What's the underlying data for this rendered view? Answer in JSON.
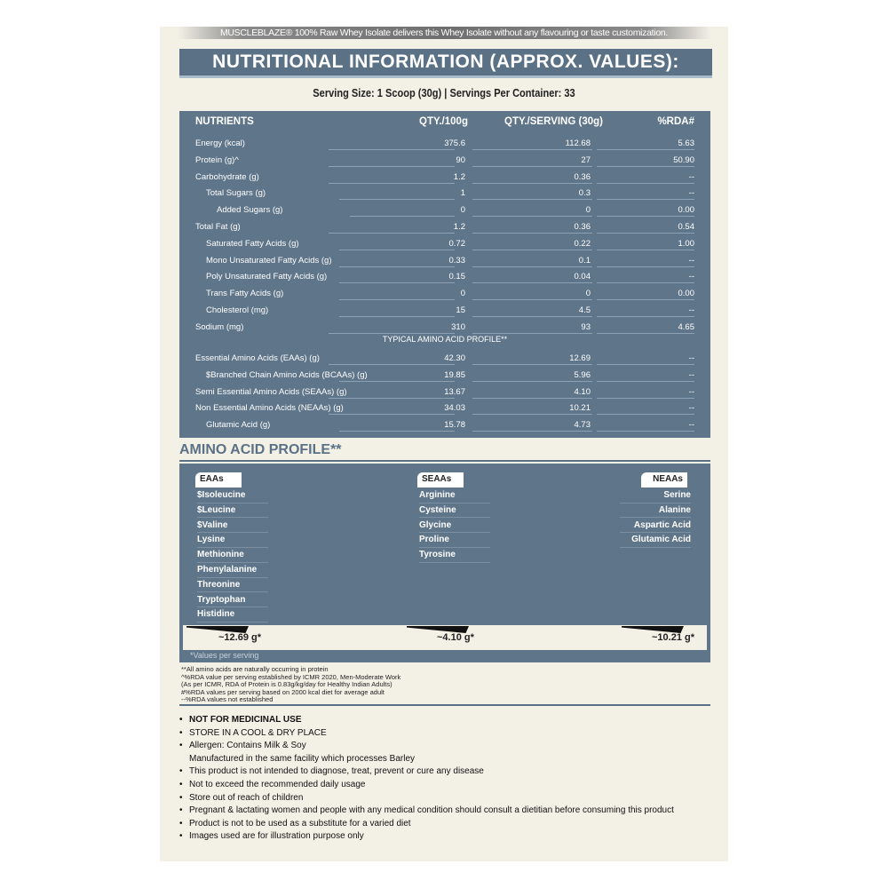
{
  "banner": "MUSCLEBLAZE® 100% Raw Whey Isolate delivers this Whey Isolate without any flavouring or taste customization.",
  "title": "NUTRITIONAL INFORMATION (APPROX. VALUES):",
  "serving": "Serving Size: 1 Scoop (30g)  |  Servings Per Container: 33",
  "table": {
    "headers": [
      "NUTRIENTS",
      "QTY./100g",
      "QTY./SERVING (30g)",
      "%RDA#"
    ],
    "rows": [
      {
        "name": "Energy (kcal)",
        "indent": 0,
        "per100": "375.6",
        "serving": "112.68",
        "rda": "5.63"
      },
      {
        "name": "Protein (g)^",
        "indent": 0,
        "per100": "90",
        "serving": "27",
        "rda": "50.90"
      },
      {
        "name": "Carbohydrate (g)",
        "indent": 0,
        "per100": "1.2",
        "serving": "0.36",
        "rda": "--"
      },
      {
        "name": "Total Sugars (g)",
        "indent": 1,
        "per100": "1",
        "serving": "0.3",
        "rda": "--"
      },
      {
        "name": "Added Sugars (g)",
        "indent": 2,
        "per100": "0",
        "serving": "0",
        "rda": "0.00"
      },
      {
        "name": "Total Fat (g)",
        "indent": 0,
        "per100": "1.2",
        "serving": "0.36",
        "rda": "0.54"
      },
      {
        "name": "Saturated Fatty Acids (g)",
        "indent": 1,
        "per100": "0.72",
        "serving": "0.22",
        "rda": "1.00"
      },
      {
        "name": "Mono Unsaturated Fatty Acids (g)",
        "indent": 1,
        "per100": "0.33",
        "serving": "0.1",
        "rda": "--"
      },
      {
        "name": "Poly Unsaturated Fatty Acids (g)",
        "indent": 1,
        "per100": "0.15",
        "serving": "0.04",
        "rda": "--"
      },
      {
        "name": "Trans Fatty Acids (g)",
        "indent": 1,
        "per100": "0",
        "serving": "0",
        "rda": "0.00"
      },
      {
        "name": "Cholesterol (mg)",
        "indent": 1,
        "per100": "15",
        "serving": "4.5",
        "rda": "--"
      },
      {
        "name": "Sodium (mg)",
        "indent": 0,
        "per100": "310",
        "serving": "93",
        "rda": "4.65"
      }
    ],
    "amino_heading": "TYPICAL AMINO ACID PROFILE**",
    "amino_rows": [
      {
        "name": "Essential Amino Acids (EAAs) (g)",
        "indent": 0,
        "per100": "42.30",
        "serving": "12.69",
        "rda": "--"
      },
      {
        "name": "$Branched Chain Amino Acids (BCAAs) (g)",
        "indent": 1,
        "per100": "19.85",
        "serving": "5.96",
        "rda": "--"
      },
      {
        "name": "Semi Essential Amino Acids (SEAAs) (g)",
        "indent": 0,
        "per100": "13.67",
        "serving": "4.10",
        "rda": "--"
      },
      {
        "name": "Non Essential Amino Acids (NEAAs) (g)",
        "indent": 0,
        "per100": "34.03",
        "serving": "10.21",
        "rda": "--"
      },
      {
        "name": "Glutamic Acid (g)",
        "indent": 1,
        "per100": "15.78",
        "serving": "4.73",
        "rda": "--"
      }
    ]
  },
  "amino_profile": {
    "title": "AMINO ACID PROFILE**",
    "groups": [
      {
        "label": "EAAs",
        "items": [
          "$Isoleucine",
          "$Leucine",
          "$Valine",
          "Lysine",
          "Methionine",
          "Phenylalanine",
          "Threonine",
          "Tryptophan",
          "Histidine"
        ],
        "total": "~12.69 g*"
      },
      {
        "label": "SEAAs",
        "items": [
          "Arginine",
          "Cysteine",
          "Glycine",
          "Proline",
          "Tyrosine"
        ],
        "total": "~4.10 g*"
      },
      {
        "label": "NEAAs",
        "items": [
          "Serine",
          "Alanine",
          "Aspartic Acid",
          "Glutamic Acid"
        ],
        "total": "~10.21 g*"
      }
    ],
    "note": "*Values per serving"
  },
  "footnotes": [
    "**All amino acids are naturally occurring in protein",
    "^%RDA value per serving established by ICMR 2020, Men-Moderate Work",
    "(As per ICMR, RDA of Protein is 0.83g/kg/day for Healthy Indian Adults)",
    "#%RDA values per serving based on 2000 kcal diet for average adult",
    "--%RDA values not established"
  ],
  "bullets": [
    {
      "text": "NOT FOR MEDICINAL USE",
      "bold": true,
      "bullet": true
    },
    {
      "text": "STORE IN A COOL & DRY PLACE",
      "bullet": true
    },
    {
      "text": "Allergen: Contains Milk & Soy",
      "bullet": true
    },
    {
      "text": "Manufactured in the same facility which processes Barley",
      "bullet": false
    },
    {
      "text": "This product is not intended to diagnose, treat, prevent or cure any disease",
      "bullet": true
    },
    {
      "text": "Not to exceed the recommended daily usage",
      "bullet": true
    },
    {
      "text": "Store out of reach of children",
      "bullet": true
    },
    {
      "text": "Pregnant & lactating women and people with any medical condition should consult a dietitian before consuming this product",
      "bullet": true
    },
    {
      "text": "Product is not to be used as a substitute for a varied diet",
      "bullet": true
    },
    {
      "text": "Images used are for illustration purpose only",
      "bullet": true
    }
  ],
  "colors": {
    "panel": "#5f7589",
    "background": "#f3f0e6"
  }
}
